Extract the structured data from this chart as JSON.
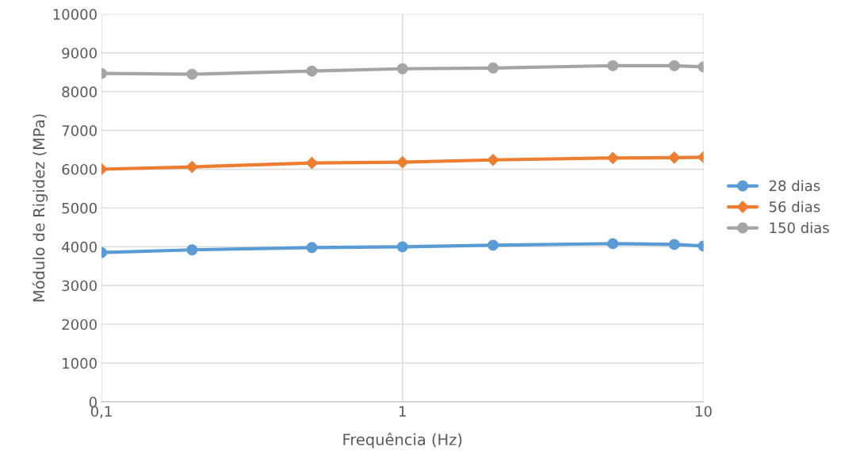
{
  "chart_data": {
    "type": "line",
    "xlabel": "Frequência (Hz)",
    "ylabel": "Módulo de Rigidez (MPa)",
    "log": "x",
    "x": [
      0.1,
      0.2,
      0.5,
      1,
      2,
      5,
      8,
      10
    ],
    "series": [
      {
        "name": "28 dias",
        "color": "#5b9bd5",
        "marker": "circle",
        "values": [
          3850,
          3920,
          3980,
          4000,
          4040,
          4080,
          4060,
          4020
        ]
      },
      {
        "name": "56 dias",
        "color": "#ed7d31",
        "marker": "diamond",
        "values": [
          6000,
          6060,
          6160,
          6180,
          6240,
          6290,
          6300,
          6310
        ]
      },
      {
        "name": "150 dias",
        "color": "#a5a5a5",
        "marker": "circle",
        "values": [
          8470,
          8450,
          8530,
          8590,
          8610,
          8670,
          8670,
          8640
        ]
      }
    ],
    "xlim": [
      0.1,
      10
    ],
    "xticks": [
      {
        "value": 0.1,
        "label": "0,1"
      },
      1,
      10
    ],
    "ylim": [
      0,
      10000
    ],
    "yticks": [
      0,
      1000,
      2000,
      3000,
      4000,
      5000,
      6000,
      7000,
      8000,
      9000,
      10000
    ],
    "grid": true,
    "legend": "right",
    "line_style": "solid"
  }
}
